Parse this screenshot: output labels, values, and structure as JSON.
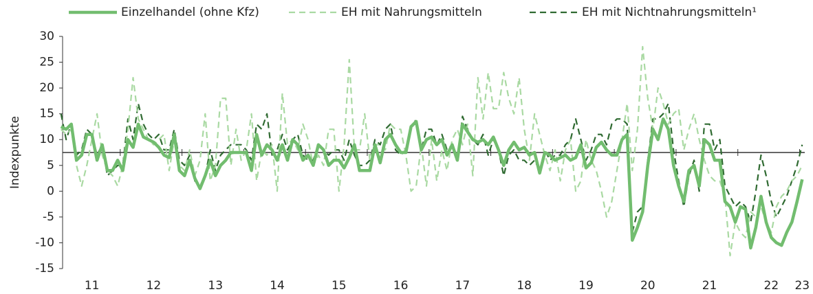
{
  "chart_data": {
    "type": "line",
    "y_label": "Indexpunkte",
    "ylim": [
      -15,
      30
    ],
    "yticks": [
      -15,
      -10,
      -5,
      0,
      5,
      10,
      15,
      20,
      25,
      30
    ],
    "x_axis_at": 7.5,
    "legend": "top",
    "categories": [
      null,
      null,
      null,
      null,
      null,
      null,
      "11",
      null,
      null,
      null,
      null,
      null,
      null,
      null,
      null,
      null,
      null,
      null,
      "12",
      null,
      null,
      null,
      null,
      null,
      null,
      null,
      null,
      null,
      null,
      null,
      "13",
      null,
      null,
      null,
      null,
      null,
      null,
      null,
      null,
      null,
      null,
      null,
      "14",
      null,
      null,
      null,
      null,
      null,
      null,
      null,
      null,
      null,
      null,
      null,
      "15",
      null,
      null,
      null,
      null,
      null,
      null,
      null,
      null,
      null,
      null,
      null,
      "16",
      null,
      null,
      null,
      null,
      null,
      null,
      null,
      null,
      null,
      null,
      null,
      "17",
      null,
      null,
      null,
      null,
      null,
      null,
      null,
      null,
      null,
      null,
      null,
      "18",
      null,
      null,
      null,
      null,
      null,
      null,
      null,
      null,
      null,
      null,
      null,
      "19",
      null,
      null,
      null,
      null,
      null,
      null,
      null,
      null,
      null,
      null,
      null,
      "20",
      null,
      null,
      null,
      null,
      null,
      null,
      null,
      null,
      null,
      null,
      null,
      "21",
      null,
      null,
      null,
      null,
      null,
      null,
      null,
      null,
      null,
      null,
      null,
      "22",
      null,
      null,
      null,
      null,
      null,
      "23"
    ],
    "series": [
      {
        "name": "Einzelhandel (ohne Kfz)",
        "color": "#72bd6f",
        "style": "solid",
        "values": [
          12.5,
          12,
          13,
          6,
          7,
          11,
          11,
          6,
          9,
          4,
          4,
          6,
          4,
          10,
          8.5,
          13,
          10.5,
          10,
          9.5,
          8.5,
          7,
          6.5,
          11,
          4,
          3,
          6,
          2.5,
          0.5,
          3,
          6,
          3,
          5,
          6,
          7.5,
          7.5,
          7.5,
          7.5,
          4,
          11,
          7,
          9,
          8,
          6,
          9,
          6,
          10,
          9,
          6,
          7,
          5,
          9,
          8,
          5,
          6,
          6,
          4.5,
          6.5,
          9,
          4,
          4,
          4,
          9,
          5.5,
          10,
          11,
          9,
          7.5,
          7.5,
          12.5,
          13.5,
          8,
          10,
          10.5,
          9,
          10,
          7,
          9,
          6,
          13,
          11.5,
          10,
          9.5,
          10,
          9,
          10.5,
          8,
          5,
          8,
          9.5,
          8,
          8.5,
          7,
          7.5,
          3.5,
          7.5,
          7,
          6,
          6.5,
          7,
          6,
          6.5,
          9,
          4.5,
          5.5,
          8.5,
          9.5,
          8,
          7,
          7,
          10,
          11,
          -9.5,
          -7,
          -4,
          5,
          12,
          10,
          14,
          12,
          5,
          1,
          -2,
          4,
          5,
          1,
          10,
          9,
          6,
          6,
          -2,
          -3,
          -6,
          -3,
          -3.5,
          -11,
          -7,
          -1,
          -6,
          -9,
          -10,
          -10.5,
          -8,
          -6,
          -2,
          2.3
        ]
      },
      {
        "name": "EH mit Nahrungsmitteln",
        "color": "#a9d9a2",
        "style": "dashed",
        "values": [
          12,
          11,
          12,
          5,
          1,
          5,
          10,
          15,
          7,
          4,
          3,
          1,
          5,
          12,
          22,
          14,
          12,
          10,
          9,
          10,
          11,
          4,
          10,
          5,
          4,
          8,
          3,
          6,
          15,
          2,
          5,
          18,
          18,
          5,
          12,
          6,
          8,
          15,
          2,
          8,
          7,
          9,
          0,
          19,
          9,
          10,
          8,
          13,
          10,
          5,
          7,
          5,
          12,
          12,
          0,
          9,
          25.5,
          8,
          8,
          15,
          6,
          9,
          9,
          8,
          13,
          12,
          12,
          7,
          0,
          1,
          9,
          1,
          10,
          2,
          8,
          4,
          10,
          12,
          9,
          13,
          3,
          22,
          14,
          23,
          16,
          16,
          23,
          18,
          15,
          22,
          12,
          6,
          15,
          11,
          7,
          4,
          8,
          2,
          8,
          10,
          0,
          2,
          10,
          6,
          4,
          0,
          -5,
          -2,
          4,
          10,
          17,
          4,
          12,
          28,
          18,
          12,
          20,
          17,
          13,
          15,
          16,
          8,
          12,
          15,
          10,
          6,
          3,
          2,
          2,
          -1,
          -12.5,
          -6,
          -8,
          -9,
          -4,
          -5,
          -3,
          -6,
          -8,
          -3,
          -1,
          0,
          2,
          3,
          5
        ]
      },
      {
        "name": "EH mit Nichtnahrungsmitteln¹",
        "color": "#2f6a31",
        "style": "dashed",
        "values": [
          15,
          10,
          13,
          7,
          8,
          12,
          11,
          7,
          9,
          3,
          4,
          5,
          5,
          14,
          10,
          17,
          13,
          11,
          10,
          11,
          8,
          8,
          12,
          6,
          5,
          7,
          2,
          1,
          3,
          8,
          4,
          7,
          8,
          9,
          9,
          9,
          8,
          6,
          13,
          12,
          15,
          7,
          8,
          11,
          8,
          10,
          11,
          7,
          6,
          6,
          9,
          8,
          7,
          8,
          8,
          6,
          10,
          7,
          5,
          5,
          6,
          10,
          9,
          12,
          13,
          8,
          7,
          8,
          12,
          14,
          8,
          12,
          12,
          9,
          11,
          8,
          9,
          6,
          14.5,
          12,
          10,
          9,
          11,
          7,
          10,
          8,
          3,
          7,
          8,
          6,
          6,
          5,
          6,
          4,
          8,
          6,
          7,
          7,
          9,
          10,
          14,
          10,
          6,
          8,
          11,
          11,
          9,
          13,
          14,
          14,
          13,
          -8,
          -4,
          -3,
          6,
          14,
          14,
          15,
          17,
          8,
          2,
          -3,
          3,
          6,
          0,
          13,
          13,
          8,
          10,
          1,
          -1,
          -3,
          -2,
          -3,
          -6,
          0,
          7,
          3,
          -2,
          -5,
          -3,
          -1,
          2,
          5,
          9
        ]
      }
    ]
  }
}
